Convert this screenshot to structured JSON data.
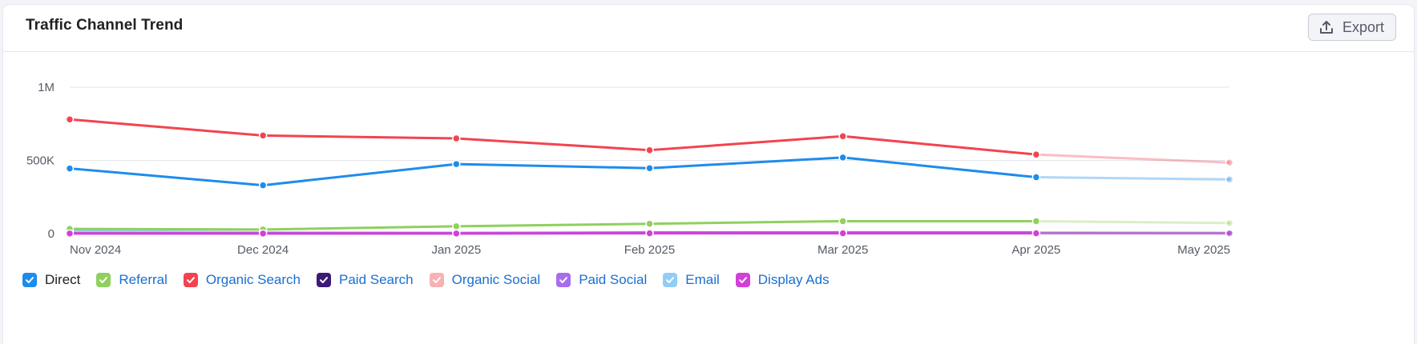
{
  "header": {
    "title": "Traffic Channel Trend",
    "export_label": "Export",
    "export_icon": "upload-icon"
  },
  "colors": {
    "direct": "#1e8cec",
    "referral": "#8fd05e",
    "organic_search": "#f2444f",
    "paid_search": "#3d1a78",
    "organic_social": "#f7b1b1",
    "paid_social": "#a86cf0",
    "email": "#90cdf7",
    "display_ads": "#d33fd8",
    "grid": "#e4e6ec"
  },
  "legend": [
    {
      "key": "direct",
      "label": "Direct",
      "checked": true
    },
    {
      "key": "referral",
      "label": "Referral",
      "checked": true
    },
    {
      "key": "organic_search",
      "label": "Organic Search",
      "checked": true
    },
    {
      "key": "paid_search",
      "label": "Paid Search",
      "checked": true
    },
    {
      "key": "organic_social",
      "label": "Organic Social",
      "checked": true
    },
    {
      "key": "paid_social",
      "label": "Paid Social",
      "checked": true
    },
    {
      "key": "email",
      "label": "Email",
      "checked": true
    },
    {
      "key": "display_ads",
      "label": "Display Ads",
      "checked": true
    }
  ],
  "chart_data": {
    "type": "line",
    "title": "Traffic Channel Trend",
    "categories": [
      "Nov 2024",
      "Dec 2024",
      "Jan 2025",
      "Feb 2025",
      "Mar 2025",
      "Apr 2025",
      "May 2025"
    ],
    "y_ticks": [
      {
        "value": 0,
        "label": "0"
      },
      {
        "value": 500000,
        "label": "500K"
      },
      {
        "value": 1000000,
        "label": "1M"
      }
    ],
    "ylim": [
      0,
      1000000
    ],
    "grid": true,
    "legend_position": "bottom-left",
    "projected_last_point": true,
    "series": [
      {
        "key": "organic_search",
        "name": "Organic Search",
        "values": [
          780000,
          670000,
          650000,
          570000,
          665000,
          540000,
          485000
        ]
      },
      {
        "key": "direct",
        "name": "Direct",
        "values": [
          445000,
          330000,
          475000,
          447000,
          520000,
          385000,
          370000
        ]
      },
      {
        "key": "referral",
        "name": "Referral",
        "values": [
          32000,
          28000,
          50000,
          67000,
          85000,
          85000,
          72000
        ]
      },
      {
        "key": "email",
        "name": "Email",
        "values": [
          18000,
          8000,
          6000,
          6000,
          6000,
          6000,
          4000
        ]
      },
      {
        "key": "organic_social",
        "name": "Organic Social",
        "values": [
          8000,
          6000,
          5000,
          5000,
          5000,
          5000,
          4000
        ]
      },
      {
        "key": "paid_search",
        "name": "Paid Search",
        "values": [
          2000,
          2000,
          2000,
          3000,
          3000,
          3000,
          2000
        ]
      },
      {
        "key": "paid_social",
        "name": "Paid Social",
        "values": [
          3000,
          3000,
          3000,
          8000,
          9000,
          9000,
          6000
        ]
      },
      {
        "key": "display_ads",
        "name": "Display Ads",
        "values": [
          1000,
          1000,
          1000,
          2000,
          2000,
          2000,
          1000
        ]
      }
    ]
  }
}
